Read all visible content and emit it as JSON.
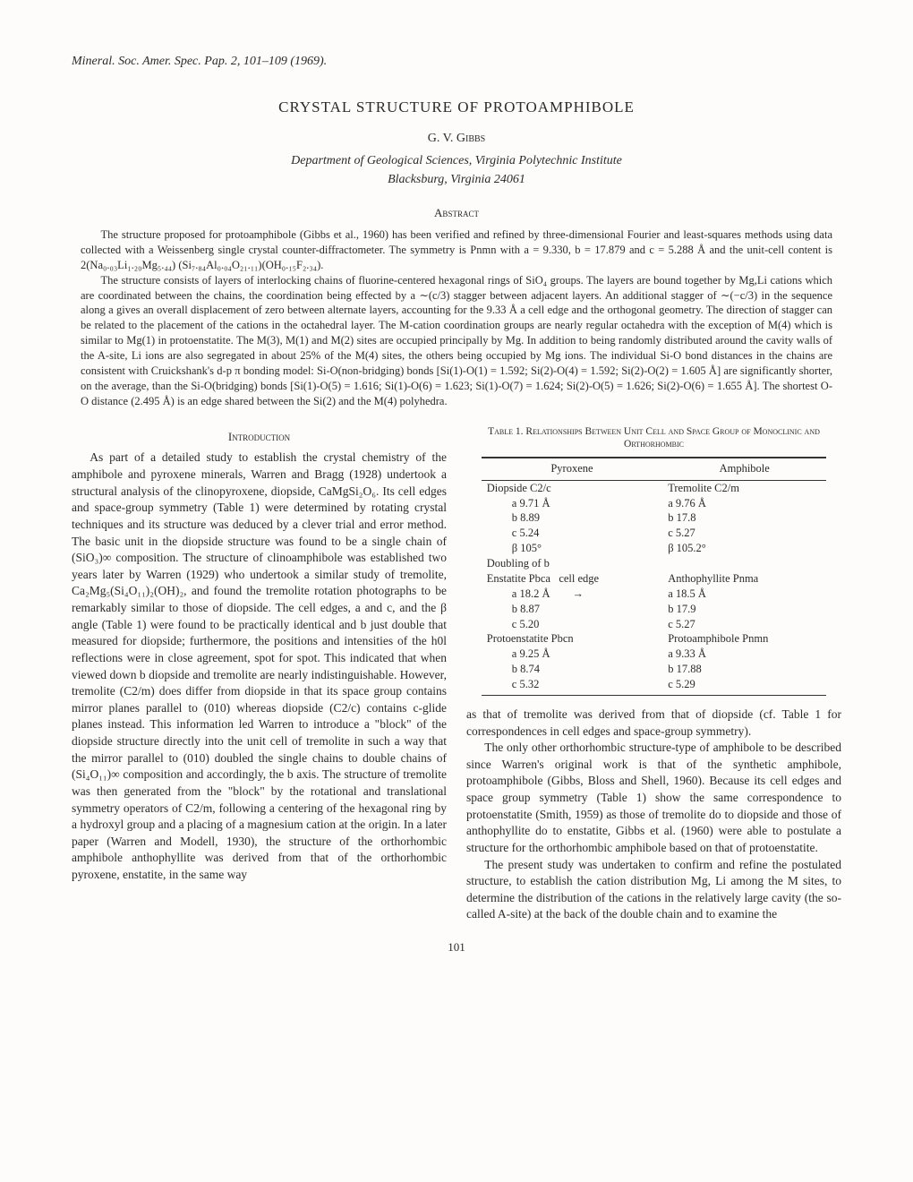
{
  "citation": "Mineral. Soc. Amer. Spec. Pap. 2, 101–109 (1969).",
  "title": "CRYSTAL STRUCTURE OF PROTOAMPHIBOLE",
  "author": "G. V. Gibbs",
  "affiliation1": "Department of Geological Sciences, Virginia Polytechnic Institute",
  "affiliation2": "Blacksburg, Virginia 24061",
  "abstract_head": "Abstract",
  "abstract": {
    "p1": "The structure proposed for protoamphibole (Gibbs et al., 1960) has been verified and refined by three-dimensional Fourier and least-squares methods using data collected with a Weissenberg single crystal counter-diffractometer. The symmetry is Pnmn with a = 9.330, b = 17.879 and c = 5.288 Å and the unit-cell content is 2(Na₀.₀₃Li₁.₂₀Mg₅.₄₄) (Si₇.₈₄Al₀.₀₄O₂₁.₁₁)(OH₀.₁₅F₂.₃₄).",
    "p2": "The structure consists of layers of interlocking chains of fluorine-centered hexagonal rings of SiO₄ groups. The layers are bound together by Mg,Li cations which are coordinated between the chains, the coordination being effected by a ∼(c/3) stagger between adjacent layers. An additional stagger of ∼(−c/3) in the sequence along a gives an overall displacement of zero between alternate layers, accounting for the 9.33 Å a cell edge and the orthogonal geometry. The direction of stagger can be related to the placement of the cations in the octahedral layer. The M-cation coordination groups are nearly regular octahedra with the exception of M(4) which is similar to Mg(1) in protoenstatite. The M(3), M(1) and M(2) sites are occupied principally by Mg. In addition to being randomly distributed around the cavity walls of the A-site, Li ions are also segregated in about 25% of the M(4) sites, the others being occupied by Mg ions. The individual Si-O bond distances in the chains are consistent with Cruickshank's d-p π bonding model: Si-O(non-bridging) bonds [Si(1)-O(1) = 1.592; Si(2)-O(4) = 1.592; Si(2)-O(2) = 1.605 Å] are significantly shorter, on the average, than the Si-O(bridging) bonds [Si(1)-O(5) = 1.616; Si(1)-O(6) = 1.623; Si(1)-O(7) = 1.624; Si(2)-O(5) = 1.626; Si(2)-O(6) = 1.655 Å]. The shortest O-O distance (2.495 Å) is an edge shared between the Si(2) and the M(4) polyhedra."
  },
  "intro_head": "Introduction",
  "intro": {
    "p1": "As part of a detailed study to establish the crystal chemistry of the amphibole and pyroxene minerals, Warren and Bragg (1928) undertook a structural analysis of the clinopyroxene, diopside, CaMgSi₂O₆. Its cell edges and space-group symmetry (Table 1) were determined by rotating crystal techniques and its structure was deduced by a clever trial and error method. The basic unit in the diopside structure was found to be a single chain of (SiO₃)∞ composition. The structure of clinoamphibole was established two years later by Warren (1929) who undertook a similar study of tremolite, Ca₂Mg₅(Si₄O₁₁)₂(OH)₂, and found the tremolite rotation photographs to be remarkably similar to those of diopside. The cell edges, a and c, and the β angle (Table 1) were found to be practically identical and b just double that measured for diopside; furthermore, the positions and intensities of the h0l reflections were in close agreement, spot for spot. This indicated that when viewed down b diopside and tremolite are nearly indistinguishable. However, tremolite (C2/m) does differ from diopside in that its space group contains mirror planes parallel to (010) whereas diopside (C2/c) contains c-glide planes instead. This information led Warren to introduce a \"block\" of the diopside structure directly into the unit cell of tremolite in such a way that the mirror parallel to (010) doubled the single chains to double chains of (Si₄O₁₁)∞ composition and accordingly, the b axis. The structure of tremolite was then generated from the \"block\" by the rotational and translational symmetry operators of C2/m, following a centering of the hexagonal ring by a hydroxyl group and a placing of a magnesium cation at the origin. In a later paper (Warren and Modell, 1930), the structure of the orthorhombic amphibole anthophyllite was derived from that of the orthorhombic pyroxene, enstatite, in the same way"
  },
  "col2": {
    "p1": "as that of tremolite was derived from that of diopside (cf. Table 1 for correspondences in cell edges and space-group symmetry).",
    "p2": "The only other orthorhombic structure-type of amphibole to be described since Warren's original work is that of the synthetic amphibole, protoamphibole (Gibbs, Bloss and Shell, 1960). Because its cell edges and space group symmetry (Table 1) show the same correspondence to protoenstatite (Smith, 1959) as those of tremolite do to diopside and those of anthophyllite do to enstatite, Gibbs et al. (1960) were able to postulate a structure for the orthorhombic amphibole based on that of protoenstatite.",
    "p3": "The present study was undertaken to confirm and refine the postulated structure, to establish the cation distribution Mg, Li among the M sites, to determine the distribution of the cations in the relatively large cavity (the so-called A-site) at the back of the double chain and to examine the"
  },
  "table": {
    "caption": "Table 1. Relationships Between Unit Cell and Space Group of Monoclinic and Orthorhombic",
    "head_l": "Pyroxene",
    "head_r": "Amphibole",
    "doubling": "Doubling of b",
    "arrow": "→",
    "cell_edge": "cell edge",
    "rows": [
      {
        "l_name": "Diopside C2/c",
        "r_name": "Tremolite C2/m",
        "cells": [
          {
            "l": "a   9.71 Å",
            "r": "a   9.76 Å"
          },
          {
            "l": "b   8.89",
            "r": "b   17.8"
          },
          {
            "l": "c   5.24",
            "r": "c   5.27"
          },
          {
            "l": "β   105°",
            "r": "β 105.2°"
          }
        ]
      },
      {
        "l_name": "Enstatite Pbca",
        "r_name": "Anthophyllite Pnma",
        "cells": [
          {
            "l": "a 18.2 Å",
            "r": "a 18.5 Å"
          },
          {
            "l": "b   8.87",
            "r": "b 17.9"
          },
          {
            "l": "c   5.20",
            "r": "c   5.27"
          }
        ]
      },
      {
        "l_name": "Protoenstatite Pbcn",
        "r_name": "Protoamphibole Pnmn",
        "cells": [
          {
            "l": "a   9.25 Å",
            "r": "a   9.33 Å"
          },
          {
            "l": "b   8.74",
            "r": "b 17.88"
          },
          {
            "l": "c   5.32",
            "r": "c   5.29"
          }
        ]
      }
    ]
  },
  "page_number": "101"
}
